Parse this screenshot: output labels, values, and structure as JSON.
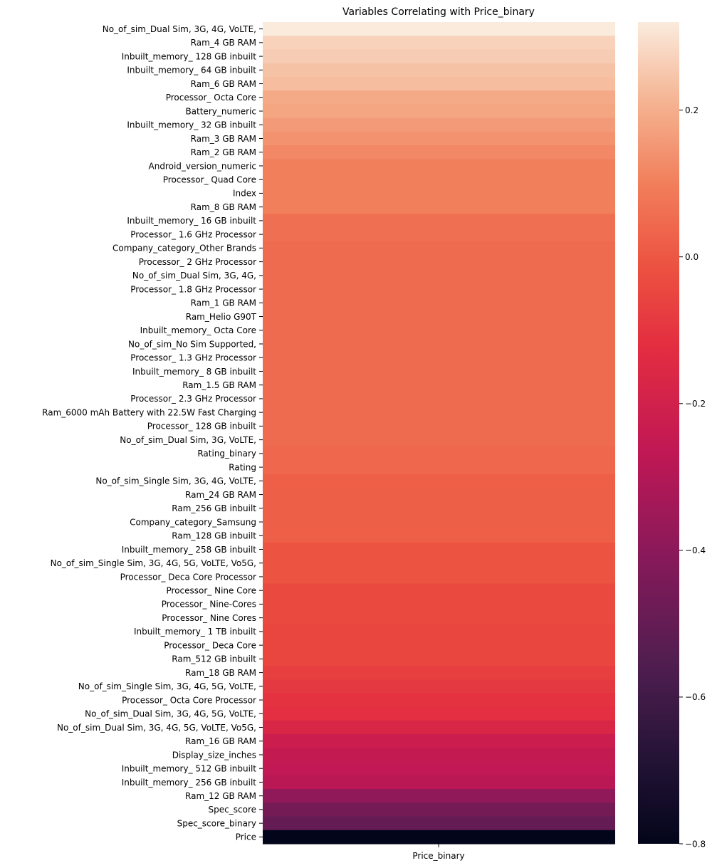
{
  "chart_data": {
    "type": "heatmap",
    "title": "Variables Correlating with Price_binary",
    "column_label": "Price_binary",
    "colormap": "rocket",
    "colorbar": {
      "range": [
        -0.8,
        0.32
      ],
      "ticks": [
        0.2,
        0.0,
        -0.2,
        -0.4,
        -0.6,
        -0.8
      ],
      "tick_labels": [
        "0.2",
        "0.0",
        "−0.2",
        "−0.4",
        "−0.6",
        "−0.8"
      ]
    },
    "rows": [
      {
        "label": "No_of_sim_Dual Sim, 3G, 4G, VoLTE,  ",
        "value": 0.32
      },
      {
        "label": "Ram_4 GB RAM",
        "value": 0.27
      },
      {
        "label": "Inbuilt_memory_ 128 GB inbuilt",
        "value": 0.26
      },
      {
        "label": "Inbuilt_memory_ 64 GB inbuilt",
        "value": 0.24
      },
      {
        "label": "Ram_6 GB RAM",
        "value": 0.23
      },
      {
        "label": "Processor_ Octa Core",
        "value": 0.19
      },
      {
        "label": "Battery_numeric",
        "value": 0.18
      },
      {
        "label": "Inbuilt_memory_ 32 GB inbuilt",
        "value": 0.16
      },
      {
        "label": "Ram_3 GB RAM",
        "value": 0.14
      },
      {
        "label": "Ram_2 GB RAM",
        "value": 0.12
      },
      {
        "label": "Android_version_numeric",
        "value": 0.1
      },
      {
        "label": "Processor_ Quad Core",
        "value": 0.1
      },
      {
        "label": "Index",
        "value": 0.1
      },
      {
        "label": "Ram_8 GB RAM",
        "value": 0.1
      },
      {
        "label": "Inbuilt_memory_ 16 GB inbuilt",
        "value": 0.06
      },
      {
        "label": "Processor_ 1.6 GHz Processor",
        "value": 0.06
      },
      {
        "label": "Company_category_Other Brands",
        "value": 0.05
      },
      {
        "label": "Processor_ 2 GHz Processor",
        "value": 0.05
      },
      {
        "label": "No_of_sim_Dual Sim, 3G, 4G,  ",
        "value": 0.05
      },
      {
        "label": "Processor_ 1.8 GHz Processor",
        "value": 0.05
      },
      {
        "label": "Ram_1 GB RAM",
        "value": 0.05
      },
      {
        "label": "Ram_Helio G90T",
        "value": 0.05
      },
      {
        "label": "Inbuilt_memory_ Octa Core",
        "value": 0.05
      },
      {
        "label": "No_of_sim_No Sim Supported,  ",
        "value": 0.05
      },
      {
        "label": "Processor_ 1.3 GHz Processor",
        "value": 0.05
      },
      {
        "label": "Inbuilt_memory_ 8 GB inbuilt",
        "value": 0.05
      },
      {
        "label": "Ram_1.5 GB RAM",
        "value": 0.05
      },
      {
        "label": "Processor_ 2.3 GHz Processor",
        "value": 0.05
      },
      {
        "label": "Ram_6000 mAh Battery with 22.5W Fast Charging",
        "value": 0.05
      },
      {
        "label": "Processor_ 128 GB inbuilt",
        "value": 0.05
      },
      {
        "label": "No_of_sim_Dual Sim, 3G, VoLTE,  ",
        "value": 0.05
      },
      {
        "label": "Rating_binary",
        "value": 0.04
      },
      {
        "label": "Rating",
        "value": 0.04
      },
      {
        "label": "No_of_sim_Single Sim, 3G, 4G, VoLTE,  ",
        "value": 0.02
      },
      {
        "label": "Ram_24 GB RAM",
        "value": 0.02
      },
      {
        "label": "Ram_256 GB inbuilt",
        "value": 0.02
      },
      {
        "label": "Company_category_Samsung",
        "value": 0.02
      },
      {
        "label": "Ram_128 GB inbuilt",
        "value": 0.02
      },
      {
        "label": "Inbuilt_memory_ 258 GB inbuilt",
        "value": -0.01
      },
      {
        "label": "No_of_sim_Single Sim, 3G, 4G, 5G, VoLTE, Vo5G,  ",
        "value": -0.01
      },
      {
        "label": "Processor_ Deca Core Processor",
        "value": -0.01
      },
      {
        "label": "Processor_ Nine Core",
        "value": -0.04
      },
      {
        "label": "Processor_ Nine-Cores",
        "value": -0.04
      },
      {
        "label": "Processor_ Nine Cores",
        "value": -0.04
      },
      {
        "label": "Inbuilt_memory_ 1 TB inbuilt",
        "value": -0.05
      },
      {
        "label": "Processor_ Deca Core",
        "value": -0.05
      },
      {
        "label": "Ram_512 GB inbuilt",
        "value": -0.05
      },
      {
        "label": "Ram_18 GB RAM",
        "value": -0.07
      },
      {
        "label": "No_of_sim_Single Sim, 3G, 4G, 5G, VoLTE,  ",
        "value": -0.09
      },
      {
        "label": "Processor_ Octa Core Processor",
        "value": -0.11
      },
      {
        "label": "No_of_sim_Dual Sim, 3G, 4G, 5G, VoLTE,  ",
        "value": -0.12
      },
      {
        "label": "No_of_sim_Dual Sim, 3G, 4G, 5G, VoLTE, Vo5G,  ",
        "value": -0.17
      },
      {
        "label": "Ram_16 GB RAM",
        "value": -0.22
      },
      {
        "label": "Display_size_inches",
        "value": -0.25
      },
      {
        "label": "Inbuilt_memory_ 512 GB inbuilt",
        "value": -0.26
      },
      {
        "label": "Inbuilt_memory_ 256 GB inbuilt",
        "value": -0.28
      },
      {
        "label": "Ram_12 GB RAM",
        "value": -0.39
      },
      {
        "label": "Spec_score",
        "value": -0.46
      },
      {
        "label": "Spec_score_binary",
        "value": -0.5
      },
      {
        "label": "Price",
        "value": -0.8
      }
    ]
  }
}
